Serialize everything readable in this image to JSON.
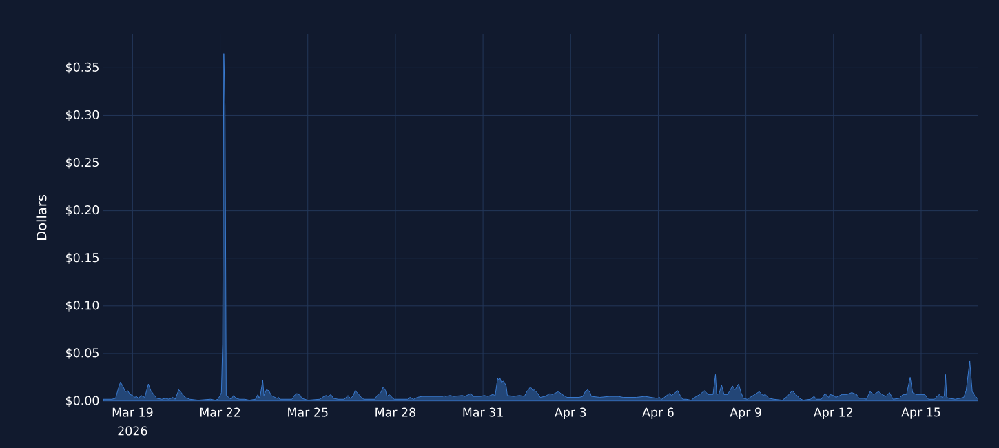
{
  "chart_data": {
    "type": "area",
    "ylabel": "Dollars",
    "color": "#3d82dc",
    "x": [
      "2026-03-18T00:00",
      "2026-03-18T07:00",
      "2026-03-18T10:00",
      "2026-03-18T12:00",
      "2026-03-18T14:00",
      "2026-03-18T16:00",
      "2026-03-18T18:00",
      "2026-03-18T20:00",
      "2026-03-18T22:00",
      "2026-03-19T00:00",
      "2026-03-19T02:00",
      "2026-03-19T03:00",
      "2026-03-19T05:00",
      "2026-03-19T07:00",
      "2026-03-19T10:00",
      "2026-03-19T13:00",
      "2026-03-19T15:00",
      "2026-03-19T18:00",
      "2026-03-19T20:00",
      "2026-03-20T00:00",
      "2026-03-20T03:00",
      "2026-03-20T06:00",
      "2026-03-20T09:00",
      "2026-03-20T11:00",
      "2026-03-20T14:00",
      "2026-03-20T16:00",
      "2026-03-20T19:00",
      "2026-03-20T23:00",
      "2026-03-21T06:00",
      "2026-03-21T16:00",
      "2026-03-21T20:00",
      "2026-03-21T22:00",
      "2026-03-22T00:00",
      "2026-03-22T01:00",
      "2026-03-22T02:00",
      "2026-03-22T03:00",
      "2026-03-22T04:00",
      "2026-03-22T05:00",
      "2026-03-22T07:00",
      "2026-03-22T09:00",
      "2026-03-22T11:00",
      "2026-03-22T13:00",
      "2026-03-22T16:00",
      "2026-03-22T20:00",
      "2026-03-23T00:00",
      "2026-03-23T05:00",
      "2026-03-23T07:00",
      "2026-03-23T08:00",
      "2026-03-23T09:00",
      "2026-03-23T11:00",
      "2026-03-23T12:00",
      "2026-03-23T14:00",
      "2026-03-23T16:00",
      "2026-03-23T18:00",
      "2026-03-23T21:00",
      "2026-03-23T23:00",
      "2026-03-24T00:00",
      "2026-03-24T01:00",
      "2026-03-24T11:00",
      "2026-03-24T13:00",
      "2026-03-24T15:00",
      "2026-03-24T18:00",
      "2026-03-24T19:00",
      "2026-03-25T00:00",
      "2026-03-25T10:00",
      "2026-03-25T12:00",
      "2026-03-25T15:00",
      "2026-03-25T17:00",
      "2026-03-25T19:00",
      "2026-03-25T21:00",
      "2026-03-26T01:00",
      "2026-03-26T06:00",
      "2026-03-26T09:00",
      "2026-03-26T11:00",
      "2026-03-26T13:00",
      "2026-03-26T15:00",
      "2026-03-26T18:00",
      "2026-03-26T20:00",
      "2026-03-26T22:00",
      "2026-03-27T07:00",
      "2026-03-27T09:00",
      "2026-03-27T12:00",
      "2026-03-27T14:00",
      "2026-03-27T16:00",
      "2026-03-27T17:00",
      "2026-03-27T19:00",
      "2026-03-27T22:00",
      "2026-03-27T23:00",
      "2026-03-28T05:00",
      "2026-03-28T10:00",
      "2026-03-28T12:00",
      "2026-03-28T15:00",
      "2026-03-28T18:00",
      "2026-03-28T22:00",
      "2026-03-29T15:00",
      "2026-03-29T16:00",
      "2026-03-29T17:00",
      "2026-03-29T21:00",
      "2026-03-30T00:00",
      "2026-03-30T07:00",
      "2026-03-30T09:00",
      "2026-03-30T14:00",
      "2026-03-30T16:00",
      "2026-03-30T22:00",
      "2026-03-31T01:00",
      "2026-03-31T04:00",
      "2026-03-31T08:00",
      "2026-03-31T10:00",
      "2026-03-31T12:00",
      "2026-03-31T13:00",
      "2026-03-31T14:00",
      "2026-03-31T15:00",
      "2026-03-31T17:00",
      "2026-03-31T19:00",
      "2026-03-31T20:00",
      "2026-04-01T01:00",
      "2026-04-01T06:00",
      "2026-04-01T10:00",
      "2026-04-01T12:00",
      "2026-04-01T15:00",
      "2026-04-01T17:00",
      "2026-04-01T18:00",
      "2026-04-01T21:00",
      "2026-04-01T23:00",
      "2026-04-02T03:00",
      "2026-04-02T07:00",
      "2026-04-02T09:00",
      "2026-04-02T14:00",
      "2026-04-02T17:00",
      "2026-04-02T21:00",
      "2026-04-03T00:00",
      "2026-04-03T07:00",
      "2026-04-03T10:00",
      "2026-04-03T12:00",
      "2026-04-03T14:00",
      "2026-04-03T16:00",
      "2026-04-03T17:00",
      "2026-04-04T00:00",
      "2026-04-04T08:00",
      "2026-04-04T15:00",
      "2026-04-04T19:00",
      "2026-04-05T06:00",
      "2026-04-05T13:00",
      "2026-04-05T18:00",
      "2026-04-05T23:00",
      "2026-04-06T01:00",
      "2026-04-06T03:00",
      "2026-04-06T06:00",
      "2026-04-06T09:00",
      "2026-04-06T11:00",
      "2026-04-06T16:00",
      "2026-04-06T18:00",
      "2026-04-06T20:00",
      "2026-04-06T23:00",
      "2026-04-07T03:00",
      "2026-04-07T06:00",
      "2026-04-07T10:00",
      "2026-04-07T14:00",
      "2026-04-07T17:00",
      "2026-04-07T21:00",
      "2026-04-07T23:00",
      "2026-04-08T00:00",
      "2026-04-08T02:00",
      "2026-04-08T04:00",
      "2026-04-08T06:00",
      "2026-04-08T09:00",
      "2026-04-08T13:00",
      "2026-04-08T15:00",
      "2026-04-08T18:00",
      "2026-04-08T20:00",
      "2026-04-08T22:00",
      "2026-04-09T01:00",
      "2026-04-09T06:00",
      "2026-04-09T11:00",
      "2026-04-09T14:00",
      "2026-04-09T16:00",
      "2026-04-09T19:00",
      "2026-04-09T23:00",
      "2026-04-10T06:00",
      "2026-04-10T10:00",
      "2026-04-10T14:00",
      "2026-04-10T18:00",
      "2026-04-10T20:00",
      "2026-04-10T23:00",
      "2026-04-11T05:00",
      "2026-04-11T08:00",
      "2026-04-11T10:00",
      "2026-04-11T14:00",
      "2026-04-11T17:00",
      "2026-04-11T20:00",
      "2026-04-11T21:00",
      "2026-04-12T00:00",
      "2026-04-12T02:00",
      "2026-04-12T07:00",
      "2026-04-12T11:00",
      "2026-04-12T15:00",
      "2026-04-12T19:00",
      "2026-04-12T21:00",
      "2026-04-13T01:00",
      "2026-04-13T03:00",
      "2026-04-13T06:00",
      "2026-04-13T09:00",
      "2026-04-13T13:00",
      "2026-04-13T16:00",
      "2026-04-13T19:00",
      "2026-04-13T22:00",
      "2026-04-14T01:00",
      "2026-04-14T06:00",
      "2026-04-14T09:00",
      "2026-04-14T12:00",
      "2026-04-14T15:00",
      "2026-04-14T17:00",
      "2026-04-14T20:00",
      "2026-04-15T03:00",
      "2026-04-15T06:00",
      "2026-04-15T11:00",
      "2026-04-15T13:00",
      "2026-04-15T15:00",
      "2026-04-15T17:00",
      "2026-04-15T19:00",
      "2026-04-15T20:00",
      "2026-04-15T21:00",
      "2026-04-15T23:00",
      "2026-04-16T04:00",
      "2026-04-16T08:00",
      "2026-04-16T11:00",
      "2026-04-16T13:00",
      "2026-04-16T16:00",
      "2026-04-16T18:00",
      "2026-04-16T20:00",
      "2026-04-16T23:00"
    ],
    "values": [
      0.002,
      0.002,
      0.003,
      0.012,
      0.02,
      0.016,
      0.01,
      0.011,
      0.007,
      0.006,
      0.004,
      0.005,
      0.003,
      0.006,
      0.004,
      0.018,
      0.011,
      0.006,
      0.003,
      0.002,
      0.003,
      0.002,
      0.004,
      0.002,
      0.012,
      0.009,
      0.004,
      0.002,
      0.001,
      0.002,
      0.001,
      0.002,
      0.006,
      0.009,
      0.06,
      0.365,
      0.31,
      0.006,
      0.004,
      0.002,
      0.006,
      0.003,
      0.002,
      0.002,
      0.001,
      0.002,
      0.007,
      0.003,
      0.006,
      0.022,
      0.006,
      0.012,
      0.011,
      0.006,
      0.004,
      0.003,
      0.004,
      0.002,
      0.002,
      0.006,
      0.008,
      0.006,
      0.003,
      0.001,
      0.002,
      0.004,
      0.006,
      0.005,
      0.007,
      0.003,
      0.002,
      0.002,
      0.006,
      0.003,
      0.005,
      0.011,
      0.007,
      0.004,
      0.002,
      0.002,
      0.006,
      0.009,
      0.015,
      0.011,
      0.005,
      0.007,
      0.003,
      0.002,
      0.002,
      0.002,
      0.004,
      0.002,
      0.004,
      0.005,
      0.005,
      0.006,
      0.005,
      0.006,
      0.005,
      0.006,
      0.005,
      0.008,
      0.005,
      0.005,
      0.006,
      0.005,
      0.007,
      0.006,
      0.024,
      0.022,
      0.024,
      0.02,
      0.021,
      0.016,
      0.006,
      0.005,
      0.006,
      0.005,
      0.01,
      0.015,
      0.011,
      0.012,
      0.008,
      0.004,
      0.005,
      0.008,
      0.007,
      0.01,
      0.007,
      0.004,
      0.004,
      0.004,
      0.005,
      0.01,
      0.012,
      0.009,
      0.005,
      0.004,
      0.005,
      0.005,
      0.004,
      0.004,
      0.005,
      0.004,
      0.003,
      0.004,
      0.002,
      0.005,
      0.008,
      0.006,
      0.011,
      0.006,
      0.002,
      0.002,
      0.001,
      0.004,
      0.007,
      0.011,
      0.007,
      0.007,
      0.028,
      0.007,
      0.008,
      0.017,
      0.007,
      0.007,
      0.016,
      0.012,
      0.018,
      0.009,
      0.003,
      0.002,
      0.006,
      0.01,
      0.006,
      0.007,
      0.003,
      0.002,
      0.001,
      0.005,
      0.011,
      0.006,
      0.003,
      0.001,
      0.002,
      0.005,
      0.002,
      0.002,
      0.008,
      0.004,
      0.007,
      0.006,
      0.004,
      0.007,
      0.007,
      0.009,
      0.007,
      0.003,
      0.003,
      0.002,
      0.01,
      0.007,
      0.01,
      0.007,
      0.005,
      0.009,
      0.002,
      0.003,
      0.007,
      0.007,
      0.025,
      0.009,
      0.007,
      0.007,
      0.002,
      0.002,
      0.005,
      0.007,
      0.004,
      0.006,
      0.028,
      0.004,
      0.003,
      0.002,
      0.003,
      0.004,
      0.011,
      0.042,
      0.01,
      0.006,
      0.002
    ],
    "xlim": [
      "2026-03-18T00:00",
      "2026-04-16T23:00"
    ],
    "xticks": [
      {
        "value": "2026-03-19",
        "label": "Mar 19\n2026"
      },
      {
        "value": "2026-03-22",
        "label": "Mar 22"
      },
      {
        "value": "2026-03-25",
        "label": "Mar 25"
      },
      {
        "value": "2026-03-28",
        "label": "Mar 28"
      },
      {
        "value": "2026-03-31",
        "label": "Mar 31"
      },
      {
        "value": "2026-04-03",
        "label": "Apr 3"
      },
      {
        "value": "2026-04-06",
        "label": "Apr 6"
      },
      {
        "value": "2026-04-09",
        "label": "Apr 9"
      },
      {
        "value": "2026-04-12",
        "label": "Apr 12"
      },
      {
        "value": "2026-04-15",
        "label": "Apr 15"
      }
    ],
    "ylim": [
      0,
      0.385
    ],
    "yticks": [
      {
        "value": 0,
        "label": "$0.00"
      },
      {
        "value": 0.05,
        "label": "$0.05"
      },
      {
        "value": 0.1,
        "label": "$0.10"
      },
      {
        "value": 0.15,
        "label": "$0.15"
      },
      {
        "value": 0.2,
        "label": "$0.20"
      },
      {
        "value": 0.25,
        "label": "$0.25"
      },
      {
        "value": 0.3,
        "label": "$0.30"
      },
      {
        "value": 0.35,
        "label": "$0.35"
      }
    ],
    "grid": true
  }
}
